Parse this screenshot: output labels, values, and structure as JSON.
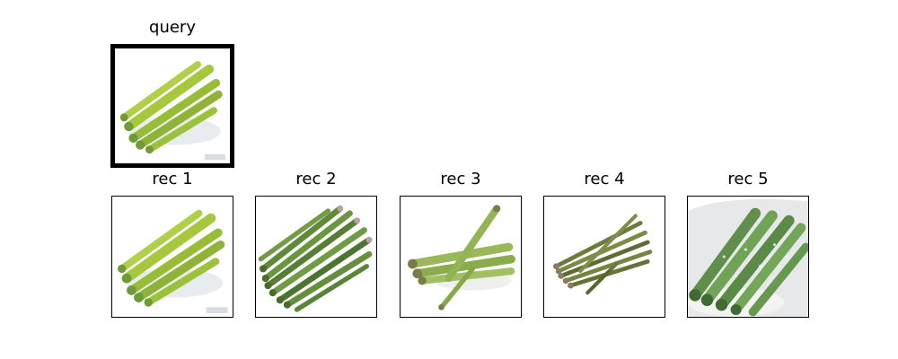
{
  "panels": {
    "query": {
      "title": "query"
    },
    "rec1": {
      "title": "rec 1"
    },
    "rec2": {
      "title": "rec 2"
    },
    "rec3": {
      "title": "rec 3"
    },
    "rec4": {
      "title": "rec 4"
    },
    "rec5": {
      "title": "rec 5"
    }
  },
  "colors": {
    "light_green": "#9cc43c",
    "mid_green": "#6f9a3a",
    "dark_green": "#4d6e2e",
    "tip_purple": "#7a6a5a",
    "frame": "#000000"
  },
  "icons": {
    "query": "asparagus-photo",
    "rec1": "asparagus-photo",
    "rec2": "asparagus-photo",
    "rec3": "asparagus-photo",
    "rec4": "asparagus-photo",
    "rec5": "asparagus-photo"
  }
}
